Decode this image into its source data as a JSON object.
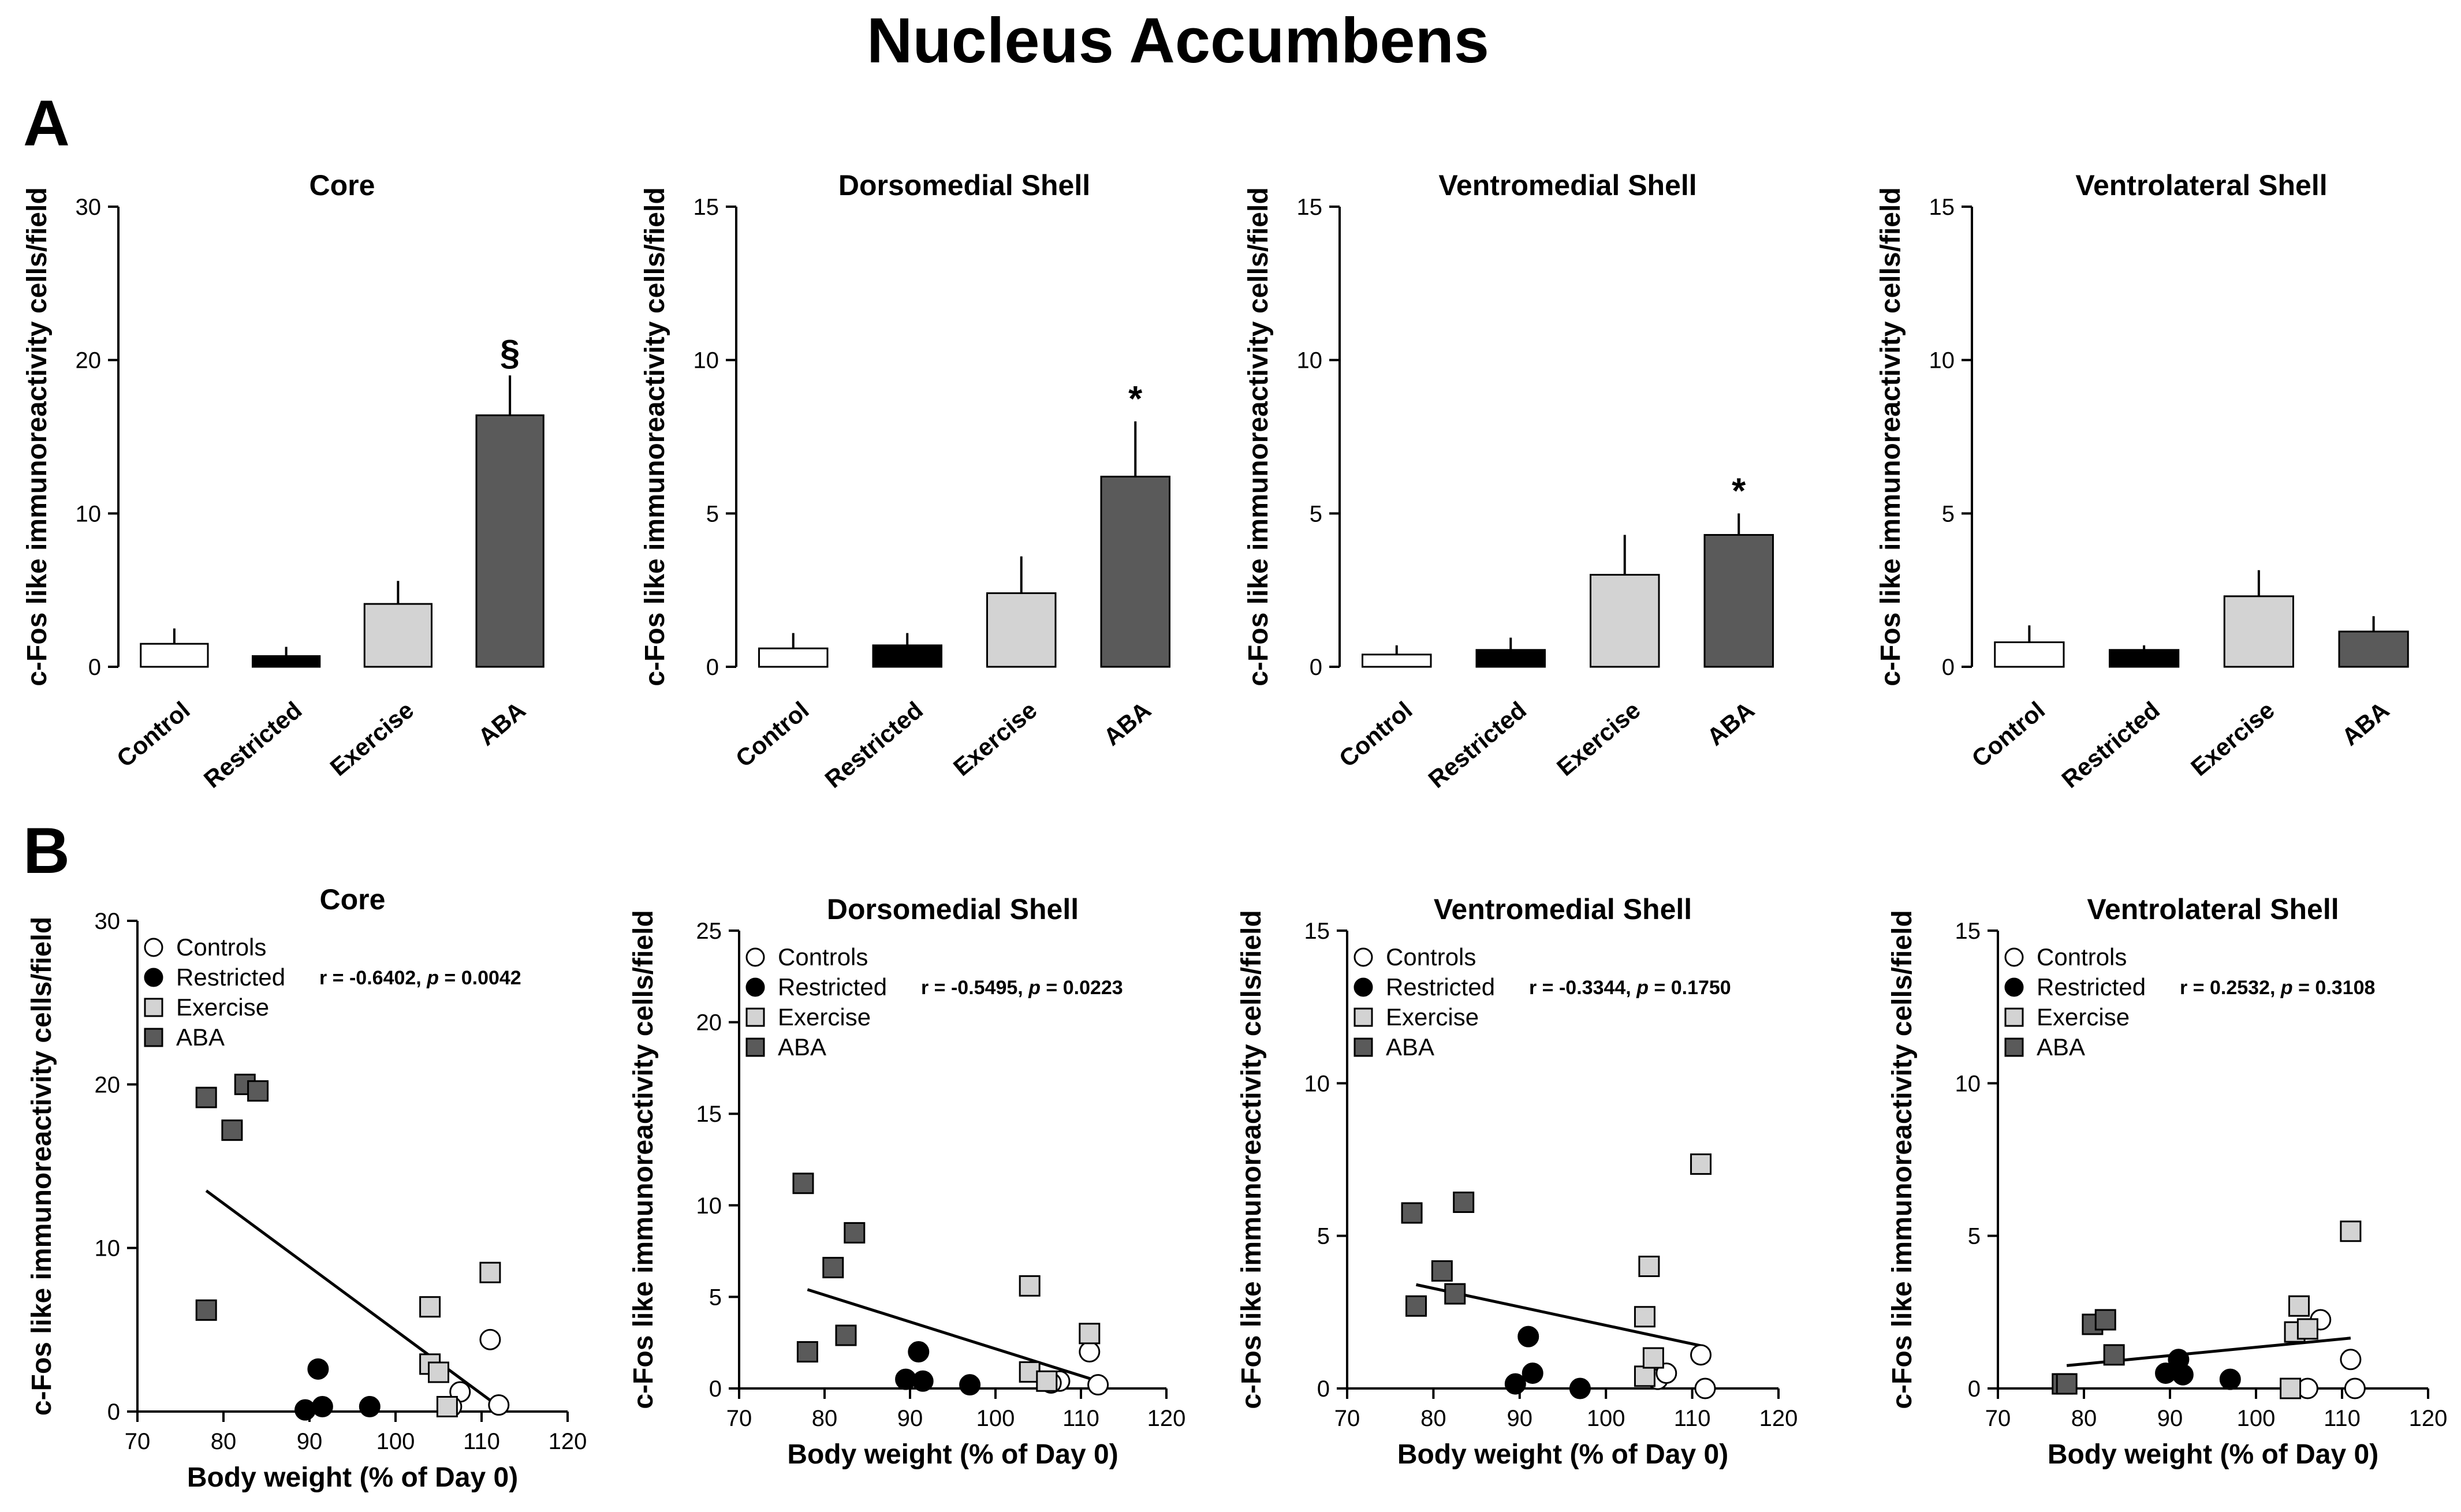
{
  "title": "Nucleus Accumbens",
  "panel_labels": [
    "A",
    "B"
  ],
  "colors": {
    "control": "#ffffff",
    "restricted": "#000000",
    "exercise": "#d3d3d3",
    "aba": "#5a5a5a"
  },
  "chart_data": [
    {
      "type": "bar",
      "panel": "A",
      "title": "Core",
      "ylabel": "c-Fos like immunoreactivity cells/field",
      "ylim": [
        0,
        30
      ],
      "yticks": [
        0,
        10,
        20,
        30
      ],
      "categories": [
        "Control",
        "Restricted",
        "Exercise",
        "ABA"
      ],
      "values": [
        1.5,
        0.7,
        4.1,
        16.4
      ],
      "errors": [
        1.0,
        0.6,
        1.5,
        2.6
      ],
      "annotations": [
        "",
        "",
        "",
        "§"
      ]
    },
    {
      "type": "bar",
      "panel": "A",
      "title": "Dorsomedial Shell",
      "ylabel": "c-Fos like immunoreactivity cells/field",
      "ylim": [
        0,
        15
      ],
      "yticks": [
        0,
        5,
        10,
        15
      ],
      "categories": [
        "Control",
        "Restricted",
        "Exercise",
        "ABA"
      ],
      "values": [
        0.6,
        0.7,
        2.4,
        6.2
      ],
      "errors": [
        0.5,
        0.4,
        1.2,
        1.8
      ],
      "annotations": [
        "",
        "",
        "",
        "*"
      ]
    },
    {
      "type": "bar",
      "panel": "A",
      "title": "Ventromedial Shell",
      "ylabel": "c-Fos like immunoreactivity cells/field",
      "ylim": [
        0,
        15
      ],
      "yticks": [
        0,
        5,
        10,
        15
      ],
      "categories": [
        "Control",
        "Restricted",
        "Exercise",
        "ABA"
      ],
      "values": [
        0.4,
        0.55,
        3.0,
        4.3
      ],
      "errors": [
        0.3,
        0.4,
        1.3,
        0.7
      ],
      "annotations": [
        "",
        "",
        "",
        "*"
      ]
    },
    {
      "type": "bar",
      "panel": "A",
      "title": "Ventrolateral Shell",
      "ylabel": "c-Fos like immunoreactivity cells/field",
      "ylim": [
        0,
        15
      ],
      "yticks": [
        0,
        5,
        10,
        15
      ],
      "categories": [
        "Control",
        "Restricted",
        "Exercise",
        "ABA"
      ],
      "values": [
        0.8,
        0.55,
        2.3,
        1.15
      ],
      "errors": [
        0.55,
        0.15,
        0.85,
        0.5
      ],
      "annotations": [
        "",
        "",
        "",
        ""
      ]
    },
    {
      "type": "scatter",
      "panel": "B",
      "title": "Core",
      "xlabel": "Body weight (% of Day 0)",
      "ylabel": "c-Fos like immunoreactivity cells/field",
      "xlim": [
        70,
        120
      ],
      "xticks": [
        70,
        80,
        90,
        100,
        110,
        120
      ],
      "ylim": [
        0,
        30
      ],
      "yticks": [
        0,
        10,
        20,
        30
      ],
      "stat_text": "r = -0.6402, ",
      "stat_p_label": "p",
      "stat_p_value": " = 0.0042",
      "fit": [
        [
          78,
          13.5
        ],
        [
          112,
          0.3
        ]
      ],
      "series": [
        {
          "name": "Controls",
          "group": "control",
          "points": [
            [
              107.5,
              1.2
            ],
            [
              111,
              4.4
            ],
            [
              112,
              0.4
            ],
            [
              106.5,
              0.3
            ]
          ]
        },
        {
          "name": "Restricted",
          "group": "restricted",
          "points": [
            [
              89.5,
              0.1
            ],
            [
              91,
              2.6
            ],
            [
              91.5,
              0.3
            ],
            [
              97,
              0.3
            ]
          ]
        },
        {
          "name": "Exercise",
          "group": "exercise",
          "points": [
            [
              104,
              6.4
            ],
            [
              104,
              2.9
            ],
            [
              105,
              2.4
            ],
            [
              106,
              0.3
            ],
            [
              111,
              8.5
            ]
          ]
        },
        {
          "name": "ABA",
          "group": "aba",
          "points": [
            [
              78,
              19.2
            ],
            [
              81,
              17.2
            ],
            [
              82.5,
              20.0
            ],
            [
              84,
              19.6
            ],
            [
              78,
              6.2
            ]
          ]
        }
      ]
    },
    {
      "type": "scatter",
      "panel": "B",
      "title": "Dorsomedial Shell",
      "xlabel": "Body weight (% of Day 0)",
      "ylabel": "c-Fos like immunoreactivity cells/field",
      "xlim": [
        70,
        120
      ],
      "xticks": [
        70,
        80,
        90,
        100,
        110,
        120
      ],
      "ylim": [
        0,
        25
      ],
      "yticks": [
        0,
        5,
        10,
        15,
        20,
        25
      ],
      "stat_text": "r = -0.5495, ",
      "stat_p_label": "p",
      "stat_p_value": " = 0.0223",
      "fit": [
        [
          78,
          5.4
        ],
        [
          112,
          0.4
        ]
      ],
      "series": [
        {
          "name": "Controls",
          "group": "control",
          "points": [
            [
              107.5,
              0.4
            ],
            [
              111,
              2.0
            ],
            [
              112,
              0.2
            ],
            [
              106.5,
              0.3
            ]
          ]
        },
        {
          "name": "Restricted",
          "group": "restricted",
          "points": [
            [
              89.5,
              0.5
            ],
            [
              91,
              2.0
            ],
            [
              91.5,
              0.4
            ],
            [
              97,
              0.2
            ]
          ]
        },
        {
          "name": "Exercise",
          "group": "exercise",
          "points": [
            [
              104,
              5.6
            ],
            [
              104,
              0.9
            ],
            [
              106,
              0.4
            ],
            [
              111,
              3.0
            ]
          ]
        },
        {
          "name": "ABA",
          "group": "aba",
          "points": [
            [
              77.5,
              11.2
            ],
            [
              81,
              6.6
            ],
            [
              83.5,
              8.5
            ],
            [
              78,
              2.0
            ],
            [
              82.5,
              2.9
            ]
          ]
        }
      ]
    },
    {
      "type": "scatter",
      "panel": "B",
      "title": "Ventromedial Shell",
      "xlabel": "Body weight (% of Day 0)",
      "ylabel": "c-Fos like immunoreactivity cells/field",
      "xlim": [
        70,
        120
      ],
      "xticks": [
        70,
        80,
        90,
        100,
        110,
        120
      ],
      "ylim": [
        0,
        15
      ],
      "yticks": [
        0,
        5,
        10,
        15
      ],
      "stat_text": "r = -0.3344, ",
      "stat_p_label": "p",
      "stat_p_value": " = 0.1750",
      "fit": [
        [
          78,
          3.4
        ],
        [
          111,
          1.4
        ]
      ],
      "series": [
        {
          "name": "Controls",
          "group": "control",
          "points": [
            [
              106,
              0.3
            ],
            [
              107,
              0.5
            ],
            [
              111,
              1.1
            ],
            [
              111.5,
              0.0
            ]
          ]
        },
        {
          "name": "Restricted",
          "group": "restricted",
          "points": [
            [
              89.5,
              0.15
            ],
            [
              91,
              1.7
            ],
            [
              91.5,
              0.5
            ],
            [
              97,
              0.0
            ]
          ]
        },
        {
          "name": "Exercise",
          "group": "exercise",
          "points": [
            [
              104.5,
              0.4
            ],
            [
              104.5,
              2.35
            ],
            [
              105,
              4.0
            ],
            [
              105.5,
              1.0
            ],
            [
              111,
              7.35
            ]
          ]
        },
        {
          "name": "ABA",
          "group": "aba",
          "points": [
            [
              77.5,
              5.75
            ],
            [
              78,
              2.7
            ],
            [
              81,
              3.85
            ],
            [
              82.5,
              3.1
            ],
            [
              83.5,
              6.1
            ]
          ]
        }
      ]
    },
    {
      "type": "scatter",
      "panel": "B",
      "title": "Ventrolateral Shell",
      "xlabel": "Body weight (% of Day 0)",
      "ylabel": "c-Fos like immunoreactivity cells/field",
      "xlim": [
        70,
        120
      ],
      "xticks": [
        70,
        80,
        90,
        100,
        110,
        120
      ],
      "ylim": [
        0,
        15
      ],
      "yticks": [
        0,
        5,
        10,
        15
      ],
      "stat_text": "r = 0.2532, ",
      "stat_p_label": "p",
      "stat_p_value": " = 0.3108",
      "fit": [
        [
          78,
          0.75
        ],
        [
          111,
          1.65
        ]
      ],
      "series": [
        {
          "name": "Controls",
          "group": "control",
          "points": [
            [
              106,
              0.0
            ],
            [
              107.5,
              2.25
            ],
            [
              111,
              0.95
            ],
            [
              111.5,
              0.0
            ]
          ]
        },
        {
          "name": "Restricted",
          "group": "restricted",
          "points": [
            [
              89.5,
              0.5
            ],
            [
              91,
              0.95
            ],
            [
              91.5,
              0.45
            ],
            [
              97,
              0.3
            ]
          ]
        },
        {
          "name": "Exercise",
          "group": "exercise",
          "points": [
            [
              104,
              0.0
            ],
            [
              104.5,
              1.85
            ],
            [
              105,
              2.7
            ],
            [
              106,
              1.95
            ],
            [
              111,
              5.15
            ]
          ]
        },
        {
          "name": "ABA",
          "group": "aba",
          "points": [
            [
              77.5,
              0.15
            ],
            [
              78,
              0.15
            ],
            [
              81,
              2.1
            ],
            [
              82.5,
              2.25
            ],
            [
              83.5,
              1.1
            ]
          ]
        }
      ]
    }
  ]
}
